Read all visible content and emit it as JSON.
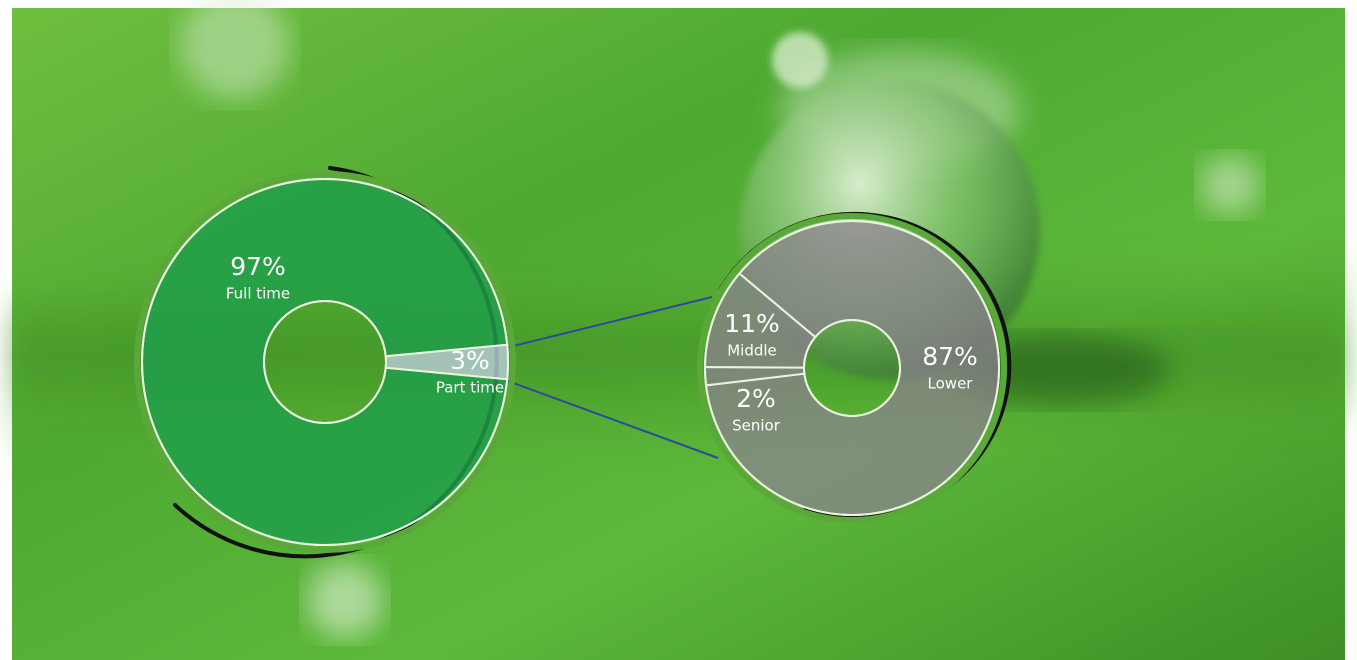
{
  "chart_data": [
    {
      "type": "pie",
      "categories": [
        "Full time",
        "Part time"
      ],
      "values": [
        97,
        3
      ],
      "value_labels": [
        "97%",
        "3%"
      ],
      "colors": [
        "#1e9e4a",
        "#b7ccd6"
      ]
    },
    {
      "type": "pie",
      "categories": [
        "Lower",
        "Senior",
        "Middle"
      ],
      "values": [
        87,
        2,
        11
      ],
      "value_labels": [
        "87%",
        "2%",
        "11%"
      ],
      "colors": [
        "#8d7f91",
        "#8d7f91",
        "#8d7f91"
      ]
    }
  ]
}
